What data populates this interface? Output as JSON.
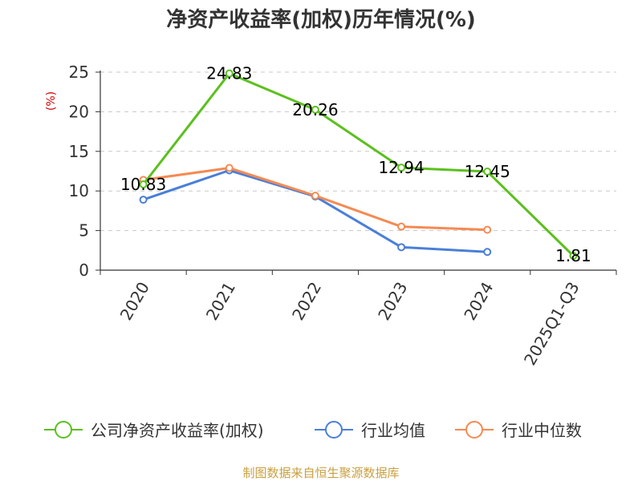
{
  "colors": {
    "series": [
      "#5bc01e",
      "#4a7fd8",
      "#f58a52"
    ],
    "axis": "#333333",
    "grid": "#c8c8c8",
    "footer": "#c8a040",
    "ylabel": "#cc0000"
  },
  "chart_data": {
    "type": "line",
    "title": "净资产收益率(加权)历年情况(%)",
    "ylabel": "(%)",
    "xlabel": "",
    "categories": [
      "2020",
      "2021",
      "2022",
      "2023",
      "2024",
      "2025Q1-Q3"
    ],
    "ylim": [
      0,
      25
    ],
    "yticks": [
      0,
      5,
      10,
      15,
      20,
      25
    ],
    "grid": "horizontal dashed",
    "legend_position": "bottom",
    "series": [
      {
        "name": "公司净资产收益率(加权)",
        "values": [
          10.83,
          24.83,
          20.26,
          12.94,
          12.45,
          1.81
        ],
        "data_labels": true
      },
      {
        "name": "行业均值",
        "values": [
          8.9,
          12.6,
          9.3,
          2.9,
          2.3,
          null
        ],
        "data_labels": false
      },
      {
        "name": "行业中位数",
        "values": [
          11.4,
          12.9,
          9.4,
          5.5,
          5.1,
          null
        ],
        "data_labels": false
      }
    ]
  },
  "footer": "制图数据来自恒生聚源数据库"
}
